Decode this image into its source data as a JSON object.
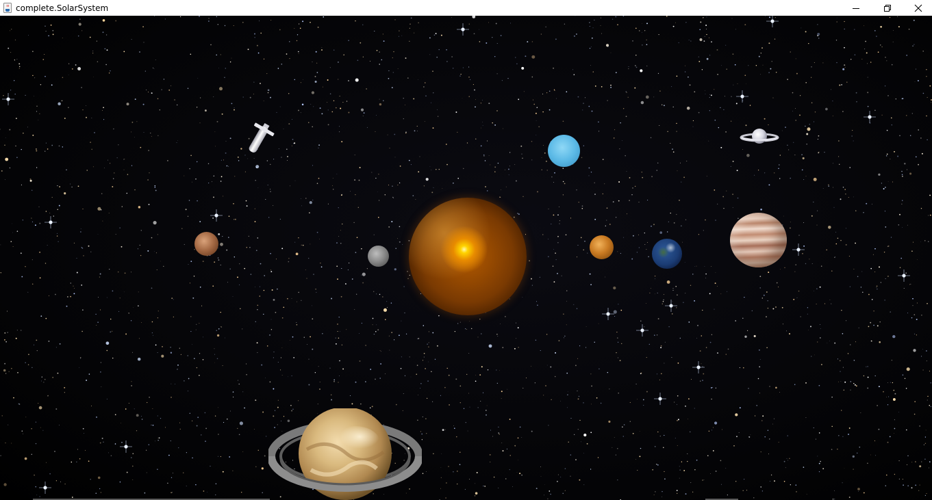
{
  "window": {
    "title": "complete.SolarSystem",
    "app_icon": "java-cup-icon",
    "controls": {
      "minimize_icon": "minimize-icon",
      "restore_icon": "restore-icon",
      "close_icon": "close-icon"
    }
  },
  "scene": {
    "background": "starfield",
    "bodies": [
      {
        "name": "sun",
        "color": "#b35a00"
      },
      {
        "name": "mercury",
        "color": "#8a8a8a"
      },
      {
        "name": "venus",
        "color": "#c97a22"
      },
      {
        "name": "earth",
        "color": "#2e5a99"
      },
      {
        "name": "mars",
        "color": "#a56a45"
      },
      {
        "name": "jupiter",
        "color": "#e0c2b0"
      },
      {
        "name": "saturn",
        "color": "#d9b97e"
      },
      {
        "name": "uranus",
        "color": "#5bb9e6"
      },
      {
        "name": "small-ringed-planet",
        "color": "#e6e6ee"
      },
      {
        "name": "satellite",
        "color": "#dcdcdc"
      }
    ]
  }
}
